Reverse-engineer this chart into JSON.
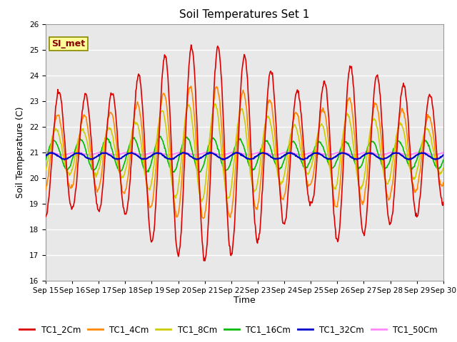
{
  "title": "Soil Temperatures Set 1",
  "xlabel": "Time",
  "ylabel": "Soil Temperature (C)",
  "ylim": [
    16.0,
    26.0
  ],
  "yticks": [
    16.0,
    17.0,
    18.0,
    19.0,
    20.0,
    21.0,
    22.0,
    23.0,
    24.0,
    25.0,
    26.0
  ],
  "xtick_labels": [
    "Sep 15",
    "Sep 16",
    "Sep 17",
    "Sep 18",
    "Sep 19",
    "Sep 20",
    "Sep 21",
    "Sep 22",
    "Sep 23",
    "Sep 24",
    "Sep 25",
    "Sep 26",
    "Sep 27",
    "Sep 28",
    "Sep 29",
    "Sep 30"
  ],
  "series": {
    "TC1_2Cm": {
      "color": "#DD0000",
      "lw": 1.2
    },
    "TC1_4Cm": {
      "color": "#FF8800",
      "lw": 1.2
    },
    "TC1_8Cm": {
      "color": "#CCCC00",
      "lw": 1.2
    },
    "TC1_16Cm": {
      "color": "#00BB00",
      "lw": 1.2
    },
    "TC1_32Cm": {
      "color": "#0000CC",
      "lw": 1.5
    },
    "TC1_50Cm": {
      "color": "#FF88FF",
      "lw": 1.5
    }
  },
  "annotation": "SI_met",
  "annotation_color": "#880000",
  "annotation_bg": "#FFFF99",
  "annotation_border": "#888800",
  "background_color": "#E8E8E8",
  "fig_bg": "#FFFFFF",
  "grid_color": "#FFFFFF",
  "title_fontsize": 11,
  "label_fontsize": 9,
  "tick_fontsize": 7.5,
  "legend_fontsize": 8.5
}
